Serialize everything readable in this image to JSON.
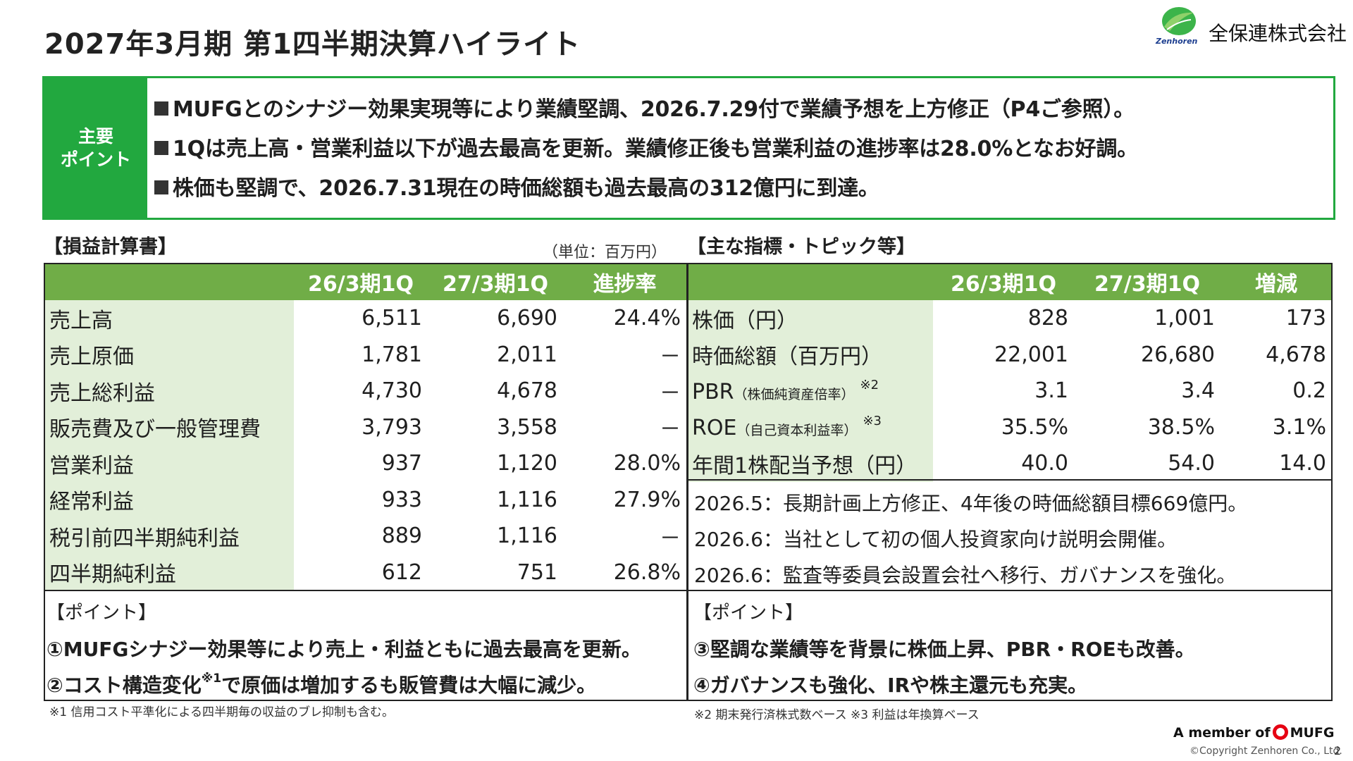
{
  "title": "2027年3月期 第1四半期決算ハイライト",
  "company": {
    "name_jp": "全保連株式会社",
    "name_en": "Zenhoren",
    "logo_icon": "zenhoren-leaf-logo"
  },
  "key_points": {
    "label_line1": "主要",
    "label_line2": "ポイント",
    "items": [
      "MUFGとのシナジー効果実現等により業績堅調、2026.7.29付で業績予想を上方修正（P4ご参照）。",
      "1Qは売上高・営業利益以下が過去最高を更新。業績修正後も営業利益の進捗率は28.0%となお好調。",
      "株価も堅調で、2026.7.31現在の時価総額も過去最高の312億円に到達。"
    ]
  },
  "income": {
    "title": "【損益計算書】",
    "unit": "（単位：百万円）",
    "headers": [
      "",
      "26/3期1Q",
      "27/3期1Q",
      "進捗率"
    ],
    "rows": [
      [
        "売上高",
        "6,511",
        "6,690",
        "24.4%"
      ],
      [
        "売上原価",
        "1,781",
        "2,011",
        "－"
      ],
      [
        "売上総利益",
        "4,730",
        "4,678",
        "－"
      ],
      [
        "販売費及び一般管理費",
        "3,793",
        "3,558",
        "－"
      ],
      [
        "営業利益",
        "937",
        "1,120",
        "28.0%"
      ],
      [
        "経常利益",
        "933",
        "1,116",
        "27.9%"
      ],
      [
        "税引前四半期純利益",
        "889",
        "1,116",
        "－"
      ],
      [
        "四半期純利益",
        "612",
        "751",
        "26.8%"
      ]
    ],
    "point_head": "【ポイント】",
    "point1": "①MUFGシナジー効果等により売上・利益ともに過去最高を更新。",
    "point2_a": "②コスト構造変化",
    "point2_sup": "※1",
    "point2_b": "で原価は増加するも販管費は大幅に減少。",
    "note": "※1 信用コスト平準化による四半期毎の収益のブレ抑制も含む。"
  },
  "indicators": {
    "title": "【主な指標・トピック等】",
    "headers": [
      "",
      "26/3期1Q",
      "27/3期1Q",
      "増減"
    ],
    "rows": [
      {
        "label": "株価（円）",
        "small": "",
        "sup": "",
        "v1": "828",
        "v2": "1,001",
        "v3": "173"
      },
      {
        "label": "時価総額（百万円）",
        "small": "",
        "sup": "",
        "v1": "22,001",
        "v2": "26,680",
        "v3": "4,678"
      },
      {
        "label": "PBR",
        "small": "（株価純資産倍率）",
        "sup": "※2",
        "v1": "3.1",
        "v2": "3.4",
        "v3": "0.2"
      },
      {
        "label": "ROE",
        "small": "（自己資本利益率）",
        "sup": "※3",
        "v1": "35.5%",
        "v2": "38.5%",
        "v3": "3.1%"
      },
      {
        "label": "年間1株配当予想（円）",
        "small": "",
        "sup": "",
        "v1": "40.0",
        "v2": "54.0",
        "v3": "14.0"
      }
    ],
    "topics": [
      "2026.5：長期計画上方修正、4年後の時価総額目標669億円。",
      "2026.6：当社として初の個人投資家向け説明会開催。",
      "2026.6：監査等委員会設置会社へ移行、ガバナンスを強化。"
    ],
    "point_head": "【ポイント】",
    "point3": "③堅調な業績等を背景に株価上昇、PBR・ROEも改善。",
    "point4": "④ガバナンスも強化、IRや株主還元も充実。",
    "note": "※2 期末発行済株式数ベース ※3 利益は年換算ベース"
  },
  "footer": {
    "member_prefix": "A member of",
    "mufg": "MUFG",
    "copyright": "©Copyright Zenhoren Co., Ltd.",
    "page": "2"
  },
  "colors": {
    "green": "#22a83f",
    "header_green": "#70ad47",
    "label_bg": "#e2efd9",
    "mufg_red": "#e60012"
  }
}
